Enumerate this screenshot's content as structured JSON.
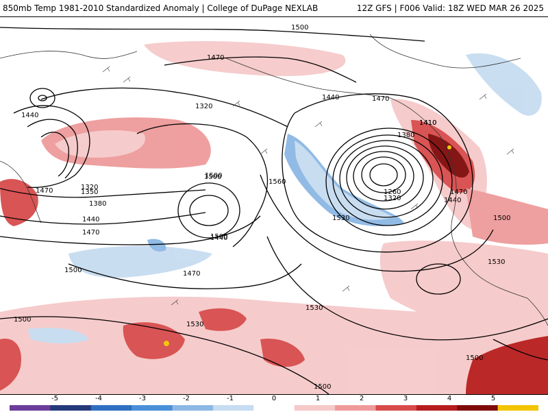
{
  "header": {
    "title_left": "850mb Temp 1981-2010 Standardized Anomaly | College of DuPage NEXLAB",
    "title_right": "12Z GFS | F006 Valid: 18Z WED MAR 26 2025"
  },
  "map": {
    "contour_labels": [
      "1500",
      "1470",
      "1440",
      "1320",
      "1500",
      "1470",
      "1410",
      "1350",
      "1380",
      "1320",
      "1440",
      "1470",
      "1500",
      "1500",
      "1470",
      "1560",
      "1440",
      "1470",
      "1500",
      "1440",
      "1410",
      "1380",
      "1260",
      "1320",
      "1530",
      "1440",
      "1470",
      "1500",
      "1530",
      "1530",
      "1500",
      "1530",
      "1500",
      "1500"
    ]
  },
  "colorbar": {
    "tick_labels": [
      "-5",
      "-4",
      "-3",
      "-2",
      "-1",
      "0",
      "1",
      "2",
      "3",
      "4",
      "5"
    ],
    "colors": [
      "#6a3d9a",
      "#253a7a",
      "#2f6fbf",
      "#4a90d9",
      "#8cb8e4",
      "#c7dcf1",
      "#ffffff",
      "#f6c9c9",
      "#ee9a9a",
      "#d84b4b",
      "#b81d1d",
      "#7f0a0a",
      "#f2c500"
    ]
  }
}
